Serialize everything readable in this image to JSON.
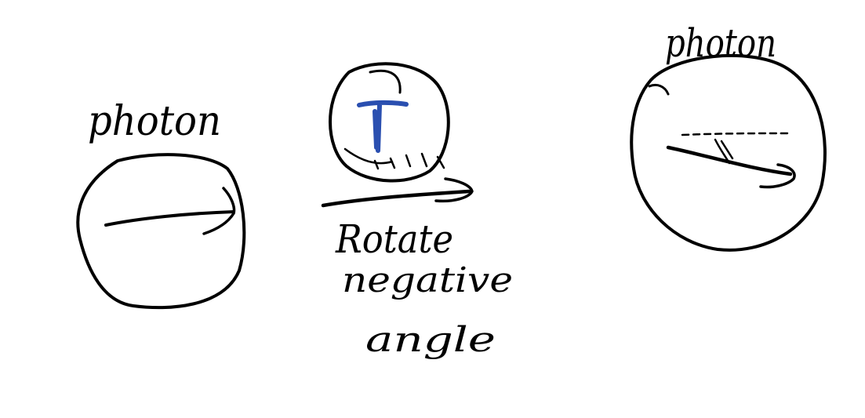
{
  "labels": {
    "left_photon": "photon",
    "right_photon": "photon",
    "caption_line1": "Rotate",
    "caption_line2": "negative",
    "caption_line3": "angle"
  },
  "colors": {
    "ink": "#000000",
    "blue_ink": "#2a4fb0",
    "background": "#ffffff"
  }
}
